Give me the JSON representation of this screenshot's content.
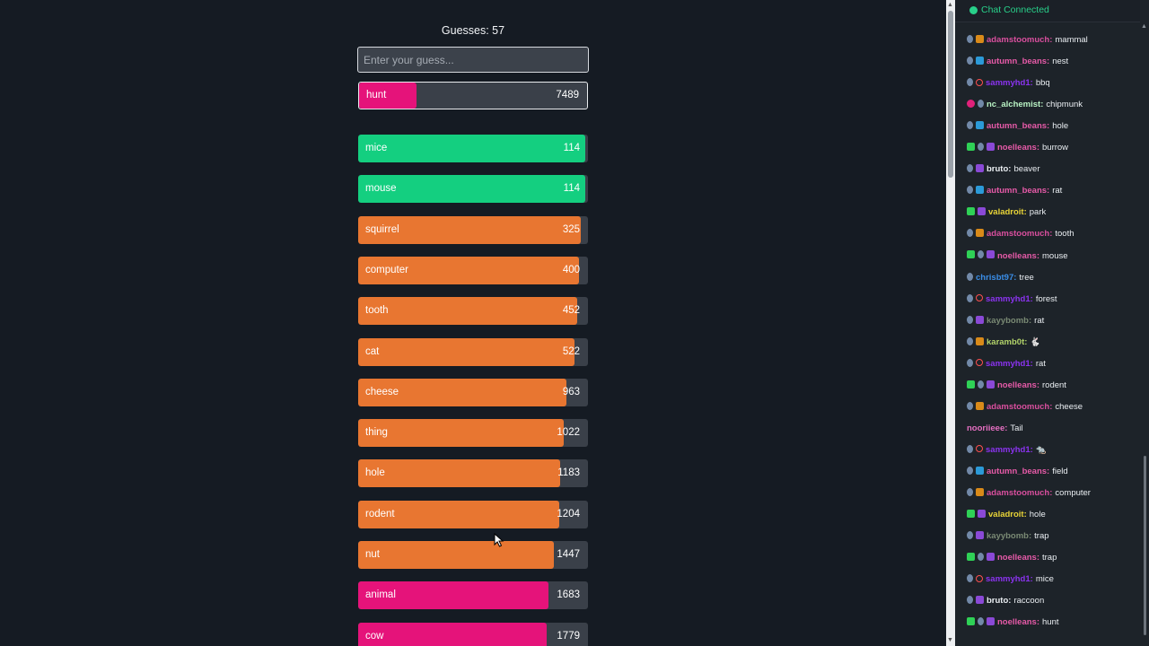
{
  "game": {
    "guess_count_label": "Guesses: 57",
    "input_placeholder": "Enter your guess...",
    "current_guess": {
      "word": "hunt",
      "score": "7489",
      "fill": 0.25,
      "color": "#e5137a"
    },
    "guesses": [
      {
        "word": "mice",
        "score": "114",
        "fill": 0.99,
        "color": "#14cf80"
      },
      {
        "word": "mouse",
        "score": "114",
        "fill": 0.99,
        "color": "#14cf80"
      },
      {
        "word": "squirrel",
        "score": "325",
        "fill": 0.97,
        "color": "#e87631"
      },
      {
        "word": "computer",
        "score": "400",
        "fill": 0.96,
        "color": "#e87631"
      },
      {
        "word": "tooth",
        "score": "452",
        "fill": 0.955,
        "color": "#e87631"
      },
      {
        "word": "cat",
        "score": "522",
        "fill": 0.94,
        "color": "#e87631"
      },
      {
        "word": "cheese",
        "score": "963",
        "fill": 0.905,
        "color": "#e87631"
      },
      {
        "word": "thing",
        "score": "1022",
        "fill": 0.895,
        "color": "#e87631"
      },
      {
        "word": "hole",
        "score": "1183",
        "fill": 0.88,
        "color": "#e87631"
      },
      {
        "word": "rodent",
        "score": "1204",
        "fill": 0.875,
        "color": "#e87631"
      },
      {
        "word": "nut",
        "score": "1447",
        "fill": 0.85,
        "color": "#e87631"
      },
      {
        "word": "animal",
        "score": "1683",
        "fill": 0.83,
        "color": "#e5137a"
      },
      {
        "word": "cow",
        "score": "1779",
        "fill": 0.82,
        "color": "#e5137a"
      }
    ]
  },
  "chat": {
    "status": "Chat Connected",
    "messages": [
      {
        "user": "adamstoomuch:",
        "text": "mammal",
        "color": "#d94f9e",
        "badges": [
          "sub",
          "crown"
        ]
      },
      {
        "user": "autumn_beans:",
        "text": "nest",
        "color": "#e65aa8",
        "badges": [
          "sub",
          "prime"
        ]
      },
      {
        "user": "sammyhd1:",
        "text": "bbq",
        "color": "#8b33f0",
        "badges": [
          "sub",
          "ring"
        ]
      },
      {
        "user": "nc_alchemist:",
        "text": "chipmunk",
        "color": "#b8f2c3",
        "badges": [
          "heart",
          "sub"
        ]
      },
      {
        "user": "autumn_beans:",
        "text": "hole",
        "color": "#e65aa8",
        "badges": [
          "sub",
          "prime"
        ]
      },
      {
        "user": "noelleans:",
        "text": "burrow",
        "color": "#e65aa8",
        "badges": [
          "mod",
          "sub",
          "gift"
        ]
      },
      {
        "user": "bruto:",
        "text": "beaver",
        "color": "#eaeef2",
        "badges": [
          "sub",
          "gift"
        ]
      },
      {
        "user": "autumn_beans:",
        "text": "rat",
        "color": "#e65aa8",
        "badges": [
          "sub",
          "prime"
        ]
      },
      {
        "user": "valadroit:",
        "text": "park",
        "color": "#e8d437",
        "badges": [
          "mod",
          "gift"
        ]
      },
      {
        "user": "adamstoomuch:",
        "text": "tooth",
        "color": "#d94f9e",
        "badges": [
          "sub",
          "crown"
        ]
      },
      {
        "user": "noelleans:",
        "text": "mouse",
        "color": "#e65aa8",
        "badges": [
          "mod",
          "sub",
          "gift"
        ]
      },
      {
        "user": "chrisbt97:",
        "text": "tree",
        "color": "#3a8ee8",
        "badges": [
          "sub"
        ]
      },
      {
        "user": "sammyhd1:",
        "text": "forest",
        "color": "#8b33f0",
        "badges": [
          "sub",
          "ring"
        ]
      },
      {
        "user": "kayybomb:",
        "text": "rat",
        "color": "#7a8a74",
        "badges": [
          "sub",
          "gift"
        ]
      },
      {
        "user": "karamb0t:",
        "text": "🐇",
        "color": "#b3d46a",
        "badges": [
          "sub",
          "crown"
        ]
      },
      {
        "user": "sammyhd1:",
        "text": "rat",
        "color": "#8b33f0",
        "badges": [
          "sub",
          "ring"
        ]
      },
      {
        "user": "noelleans:",
        "text": "rodent",
        "color": "#e65aa8",
        "badges": [
          "mod",
          "sub",
          "gift"
        ]
      },
      {
        "user": "adamstoomuch:",
        "text": "cheese",
        "color": "#d94f9e",
        "badges": [
          "sub",
          "crown"
        ]
      },
      {
        "user": "nooriieee:",
        "text": "Tail",
        "color": "#e66fc2",
        "badges": []
      },
      {
        "user": "sammyhd1:",
        "text": "🐀",
        "color": "#8b33f0",
        "badges": [
          "sub",
          "ring"
        ]
      },
      {
        "user": "autumn_beans:",
        "text": "field",
        "color": "#e65aa8",
        "badges": [
          "sub",
          "prime"
        ]
      },
      {
        "user": "adamstoomuch:",
        "text": "computer",
        "color": "#d94f9e",
        "badges": [
          "sub",
          "crown"
        ]
      },
      {
        "user": "valadroit:",
        "text": "hole",
        "color": "#e8d437",
        "badges": [
          "mod",
          "gift"
        ]
      },
      {
        "user": "kayybomb:",
        "text": "trap",
        "color": "#7a8a74",
        "badges": [
          "sub",
          "gift"
        ]
      },
      {
        "user": "noelleans:",
        "text": "trap",
        "color": "#e65aa8",
        "badges": [
          "mod",
          "sub",
          "gift"
        ]
      },
      {
        "user": "sammyhd1:",
        "text": "mice",
        "color": "#8b33f0",
        "badges": [
          "sub",
          "ring"
        ]
      },
      {
        "user": "bruto:",
        "text": "raccoon",
        "color": "#eaeef2",
        "badges": [
          "sub",
          "gift"
        ]
      },
      {
        "user": "noelleans:",
        "text": "hunt",
        "color": "#e65aa8",
        "badges": [
          "mod",
          "sub",
          "gift"
        ]
      }
    ]
  }
}
